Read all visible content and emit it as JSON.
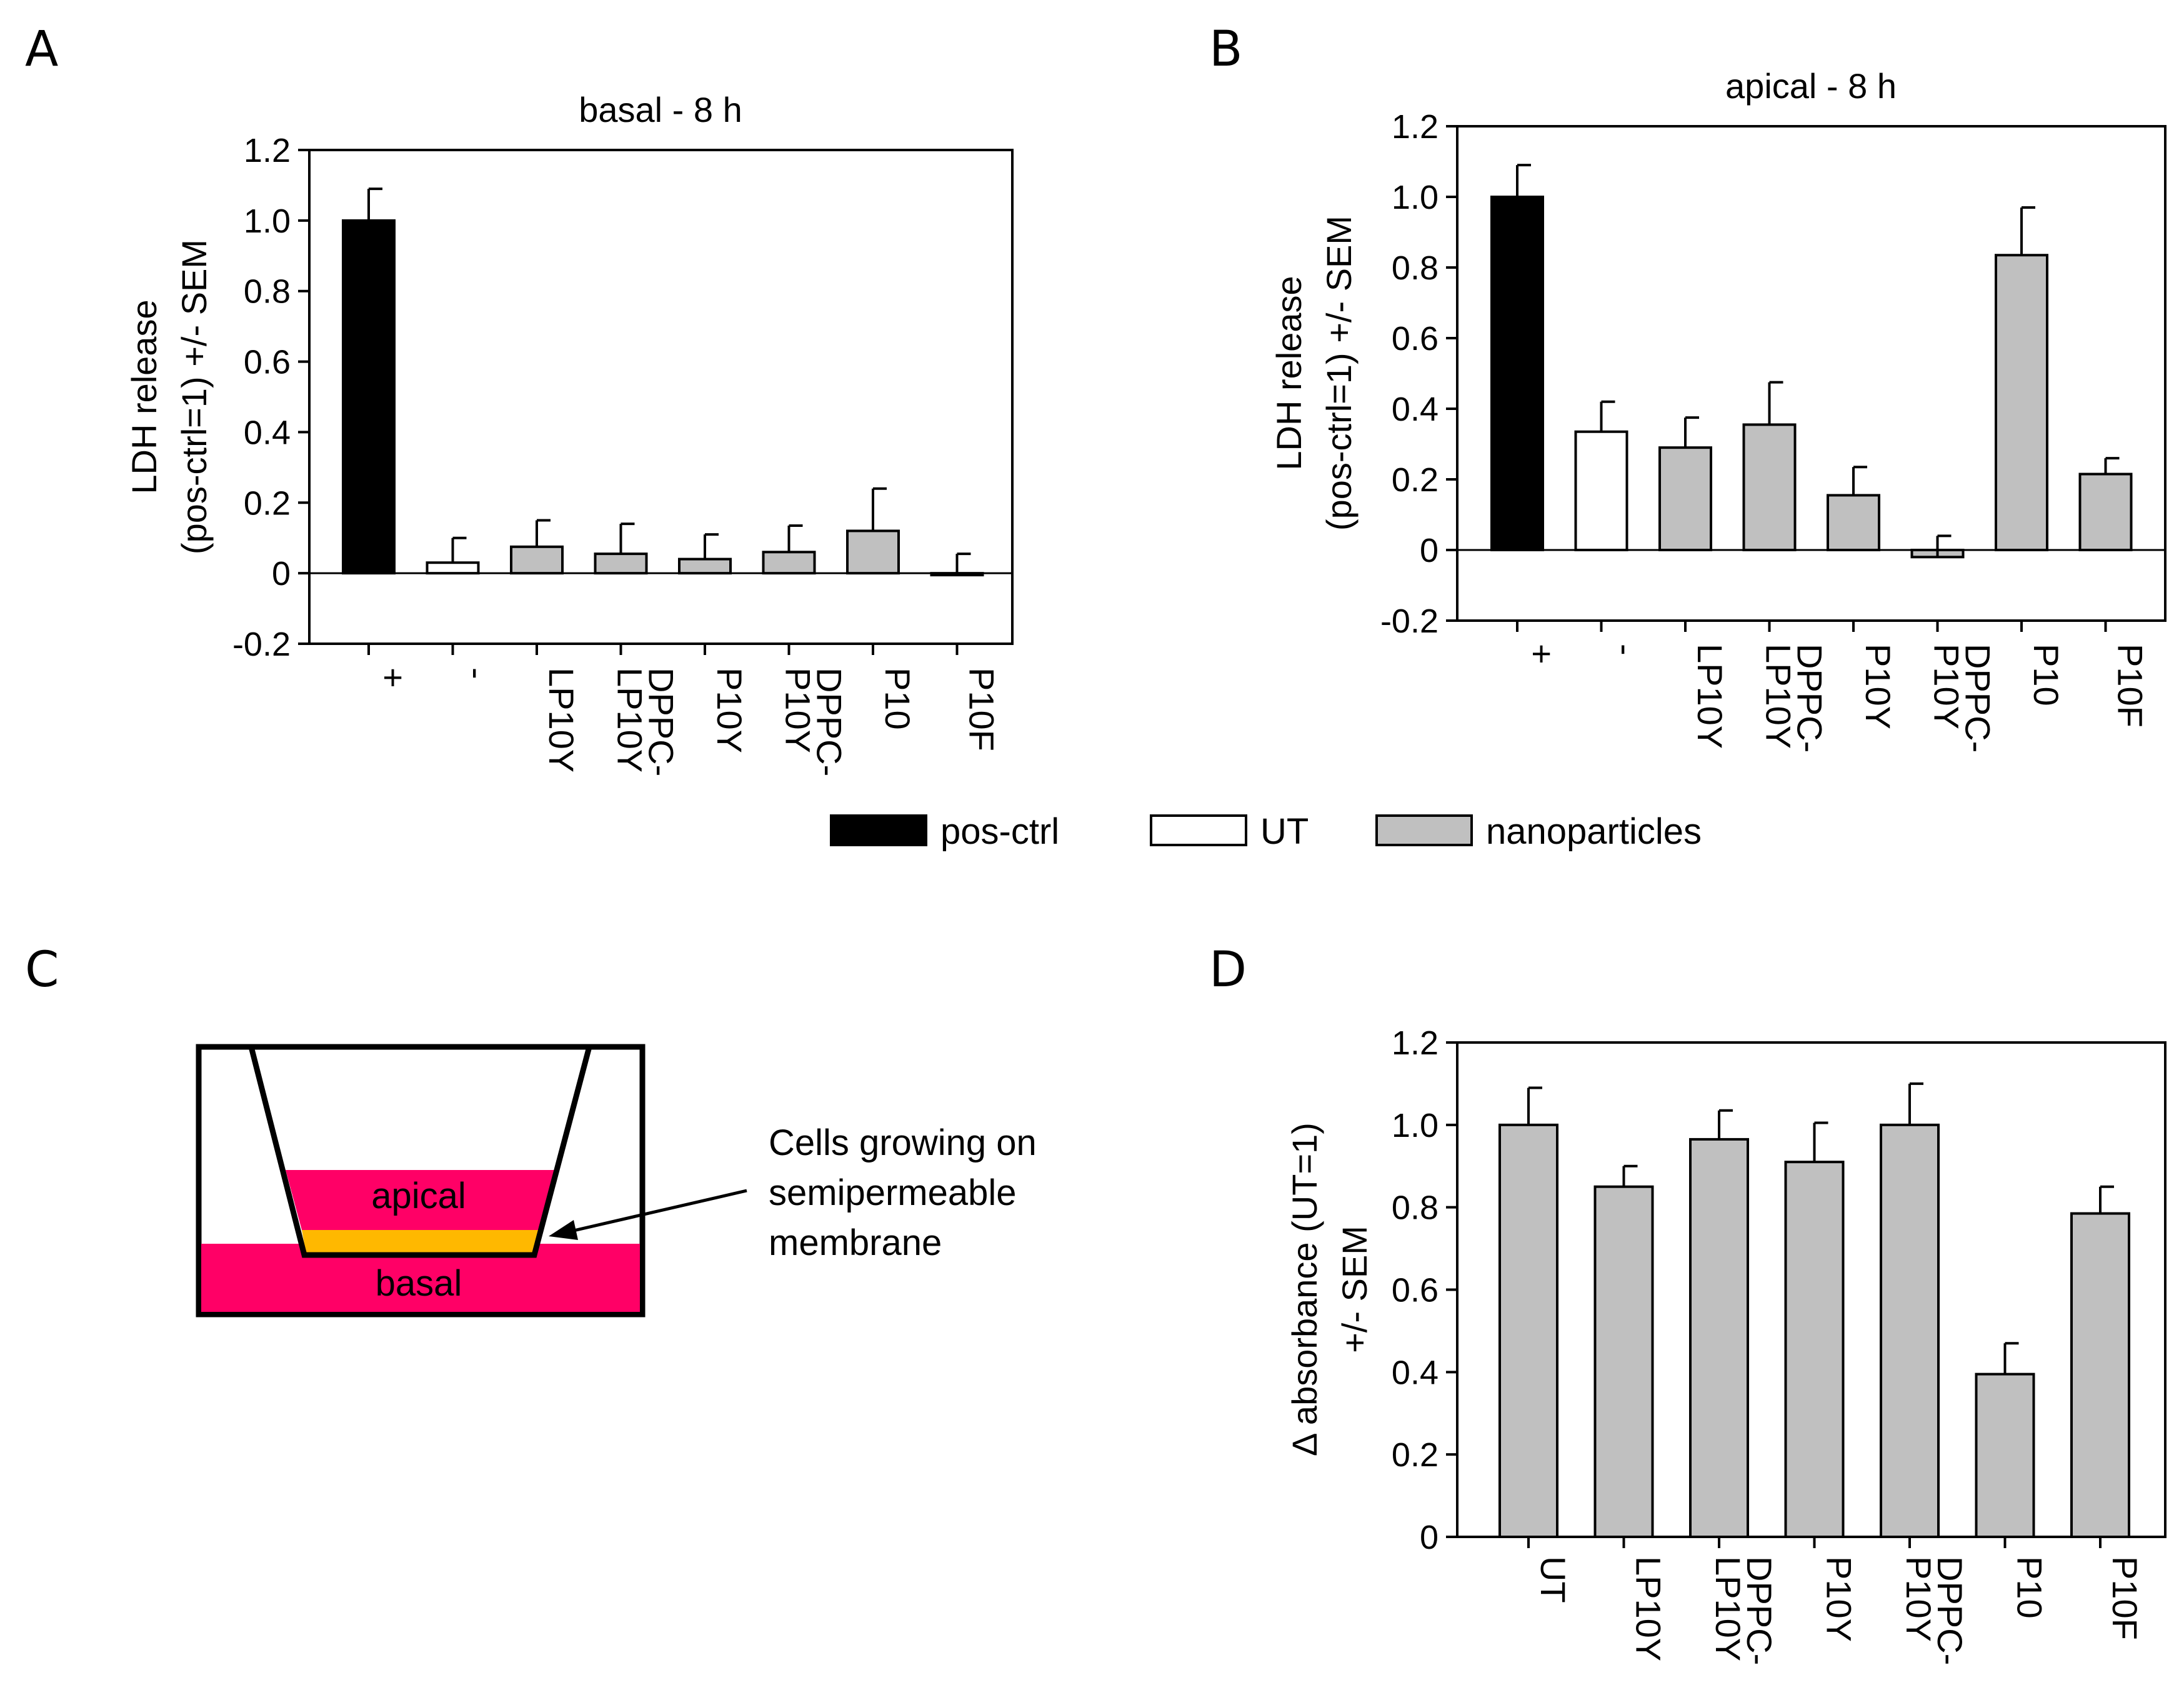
{
  "panels": {
    "a": "A",
    "b": "B",
    "c": "C",
    "d": "D"
  },
  "colors": {
    "pos_ctrl": "#000000",
    "ut": "#ffffff",
    "nanoparticles": "#c0c0c0",
    "apical_medium": "#ff0066",
    "cell_layer": "#ffb800"
  },
  "legend": {
    "items": [
      {
        "label": "pos-ctrl",
        "color": "#000000"
      },
      {
        "label": "UT",
        "color": "#ffffff"
      },
      {
        "label": "nanoparticles",
        "color": "#c0c0c0"
      }
    ]
  },
  "diagram": {
    "apical_label": "apical",
    "basal_label": "basal",
    "annotation_lines": [
      "Cells growing on",
      "semipermeable",
      "membrane"
    ]
  },
  "chart_data": [
    {
      "id": "A",
      "type": "bar",
      "title": "basal - 8 h",
      "ylabel_lines": [
        "LDH release",
        "(pos-ctrl=1) +/- SEM"
      ],
      "xlabel": "",
      "ylim": [
        -0.2,
        1.2
      ],
      "yticks": [
        "-0.2",
        "0",
        "0.2",
        "0.4",
        "0.6",
        "0.8",
        "1.0",
        "1.2"
      ],
      "categories": [
        "+",
        "-",
        "LP10Y",
        "LP10Y DPPC-",
        "P10Y",
        "P10Y DPPC-",
        "P10",
        "P10F"
      ],
      "values": [
        1.0,
        0.03,
        0.075,
        0.055,
        0.04,
        0.06,
        0.12,
        -0.005
      ],
      "errors": [
        0.09,
        0.07,
        0.075,
        0.085,
        0.07,
        0.075,
        0.12,
        0.06
      ],
      "groups": [
        "pos-ctrl",
        "UT",
        "nanoparticles",
        "nanoparticles",
        "nanoparticles",
        "nanoparticles",
        "nanoparticles",
        "nanoparticles"
      ]
    },
    {
      "id": "B",
      "type": "bar",
      "title": "apical - 8 h",
      "ylabel_lines": [
        "LDH release",
        "(pos-ctrl=1) +/- SEM"
      ],
      "xlabel": "",
      "ylim": [
        -0.2,
        1.2
      ],
      "yticks": [
        "-0.2",
        "0",
        "0.2",
        "0.4",
        "0.6",
        "0.8",
        "1.0",
        "1.2"
      ],
      "categories": [
        "+",
        "-",
        "LP10Y",
        "LP10Y DPPC-",
        "P10Y",
        "P10Y DPPC-",
        "P10",
        "P10F"
      ],
      "values": [
        1.0,
        0.335,
        0.29,
        0.355,
        0.155,
        -0.02,
        0.835,
        0.215
      ],
      "errors": [
        0.09,
        0.085,
        0.085,
        0.12,
        0.08,
        0.06,
        0.135,
        0.045
      ],
      "groups": [
        "pos-ctrl",
        "UT",
        "nanoparticles",
        "nanoparticles",
        "nanoparticles",
        "nanoparticles",
        "nanoparticles",
        "nanoparticles"
      ]
    },
    {
      "id": "D",
      "type": "bar",
      "title": "",
      "ylabel_lines": [
        "Δ absorbance (UT=1)",
        "+/- SEM"
      ],
      "xlabel": "",
      "ylim": [
        0,
        1.2
      ],
      "yticks": [
        "0",
        "0.2",
        "0.4",
        "0.6",
        "0.8",
        "1.0",
        "1.2"
      ],
      "categories": [
        "UT",
        "LP10Y",
        "LP10Y DPPC-",
        "P10Y",
        "P10Y DPPC-",
        "P10",
        "P10F"
      ],
      "values": [
        1.0,
        0.85,
        0.965,
        0.91,
        1.0,
        0.395,
        0.785
      ],
      "errors": [
        0.09,
        0.05,
        0.07,
        0.095,
        0.1,
        0.075,
        0.065
      ],
      "groups": [
        "nanoparticles",
        "nanoparticles",
        "nanoparticles",
        "nanoparticles",
        "nanoparticles",
        "nanoparticles",
        "nanoparticles"
      ]
    }
  ]
}
